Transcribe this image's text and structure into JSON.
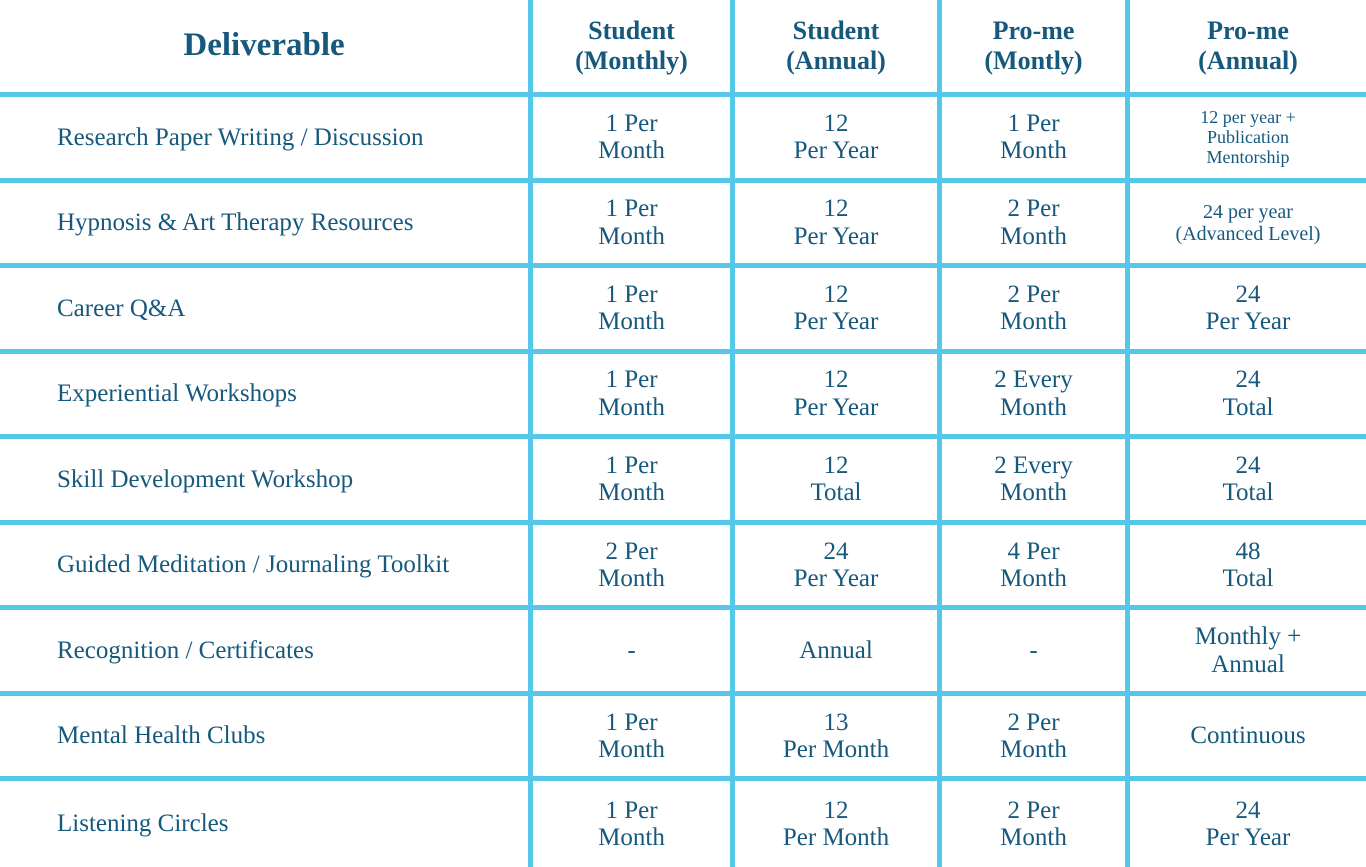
{
  "table": {
    "title_semantic": "deliverables-comparison-table",
    "colors": {
      "grid_line": "#55C7EA",
      "text": "#16597D",
      "background": "#FFFFFF"
    },
    "header": {
      "deliverable": "Deliverable",
      "cols": [
        "Student\n(Monthly)",
        "Student\n(Annual)",
        "Pro-me\n(Montly)",
        "Pro-me\n(Annual)"
      ]
    },
    "rows": [
      {
        "label": "Research Paper Writing / Discussion",
        "cells": [
          "1 Per\nMonth",
          "12\nPer Year",
          "1 Per\nMonth",
          "12 per year +\nPublication\nMentorship"
        ]
      },
      {
        "label": "Hypnosis & Art Therapy Resources",
        "cells": [
          "1 Per\nMonth",
          "12\nPer Year",
          "2 Per\nMonth",
          "24 per year\n(Advanced Level)"
        ]
      },
      {
        "label": "Career Q&A",
        "cells": [
          "1 Per\nMonth",
          "12\nPer Year",
          "2 Per\nMonth",
          "24\nPer Year"
        ]
      },
      {
        "label": "Experiential Workshops",
        "cells": [
          "1 Per\nMonth",
          "12\nPer Year",
          "2 Every\nMonth",
          "24\nTotal"
        ]
      },
      {
        "label": "Skill Development Workshop",
        "cells": [
          "1 Per\nMonth",
          "12\nTotal",
          "2 Every\nMonth",
          "24\nTotal"
        ]
      },
      {
        "label": "Guided Meditation / Journaling Toolkit",
        "cells": [
          "2 Per\nMonth",
          "24\nPer Year",
          "4 Per\nMonth",
          "48\nTotal"
        ]
      },
      {
        "label": "Recognition / Certificates",
        "cells": [
          "-",
          "Annual",
          "-",
          "Monthly +\nAnnual"
        ]
      },
      {
        "label": "Mental Health Clubs",
        "cells": [
          "1 Per\nMonth",
          "13\nPer Month",
          "2 Per\nMonth",
          "Continuous"
        ]
      },
      {
        "label": "Listening Circles",
        "cells": [
          "1 Per\nMonth",
          "12\nPer Month",
          "2 Per\nMonth",
          "24\nPer Year"
        ]
      }
    ]
  }
}
